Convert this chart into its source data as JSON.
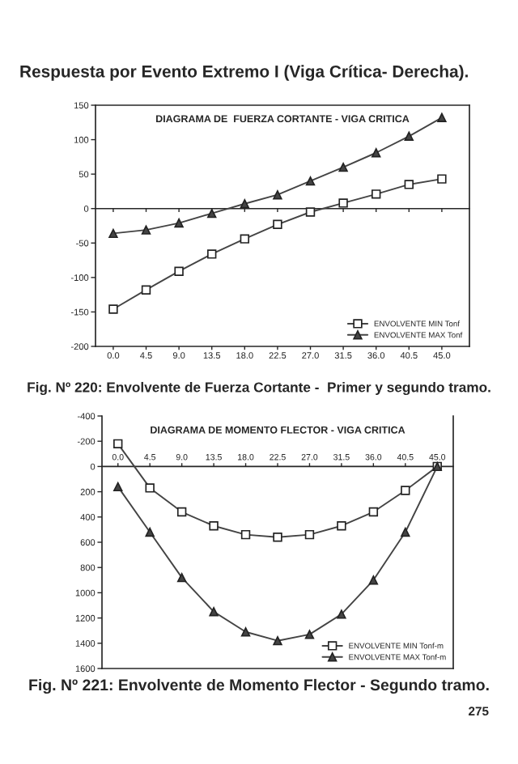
{
  "chart_data": [
    {
      "type": "line",
      "title": "DIAGRAMA DE  FUERZA CORTANTE - VIGA CRITICA",
      "categories": [
        "0.0",
        "4.5",
        "9.0",
        "13.5",
        "18.0",
        "22.5",
        "27.0",
        "31.5",
        "36.0",
        "40.5",
        "45.0"
      ],
      "series": [
        {
          "name": "ENVOLVENTE MIN Tonf",
          "color": "#444444",
          "marker": "square",
          "values": [
            -146,
            -118,
            -91,
            -66,
            -44,
            -23,
            -5,
            8,
            21,
            35,
            43
          ]
        },
        {
          "name": "ENVOLVENTE MAX Tonf",
          "color": "#444444",
          "marker": "triangle",
          "values": [
            -36,
            -31,
            -21,
            -7,
            7,
            20,
            40,
            60,
            81,
            105,
            132
          ]
        }
      ],
      "ylim": [
        -200,
        150
      ],
      "yticks": [
        -200,
        -150,
        -100,
        -50,
        0,
        50,
        100,
        150
      ],
      "legend": "bottom right",
      "annotations": [
        "Respuesta por Evento Extremo I (Viga Crítica- Derecha).",
        "Fig. Nº 220: Envolvente de Fuerza Cortante -  Primer y segundo tramo."
      ]
    },
    {
      "type": "line",
      "title": "DIAGRAMA DE MOMENTO FLECTOR - VIGA CRITICA",
      "categories": [
        "0.0",
        "4.5",
        "9.0",
        "13.5",
        "18.0",
        "22.5",
        "27.0",
        "31.5",
        "36.0",
        "40.5",
        "45.0"
      ],
      "series": [
        {
          "name": "ENVOLVENTE MIN Tonf-m",
          "color": "#444444",
          "marker": "square",
          "values": [
            -180,
            170,
            360,
            470,
            540,
            560,
            540,
            470,
            360,
            190,
            0
          ]
        },
        {
          "name": "ENVOLVENTE MAX Tonf-m",
          "color": "#444444",
          "marker": "triangle",
          "values": [
            160,
            520,
            880,
            1150,
            1310,
            1380,
            1330,
            1170,
            900,
            520,
            0
          ]
        }
      ],
      "ylim": [
        1600,
        -400
      ],
      "yticks": [
        -400,
        -200,
        0,
        200,
        400,
        600,
        800,
        1000,
        1200,
        1400,
        1600
      ],
      "legend": "bottom right",
      "annotations": [
        "Fig. Nº 221: Envolvente de Momento Flector - Segundo tramo.",
        "275"
      ]
    }
  ]
}
